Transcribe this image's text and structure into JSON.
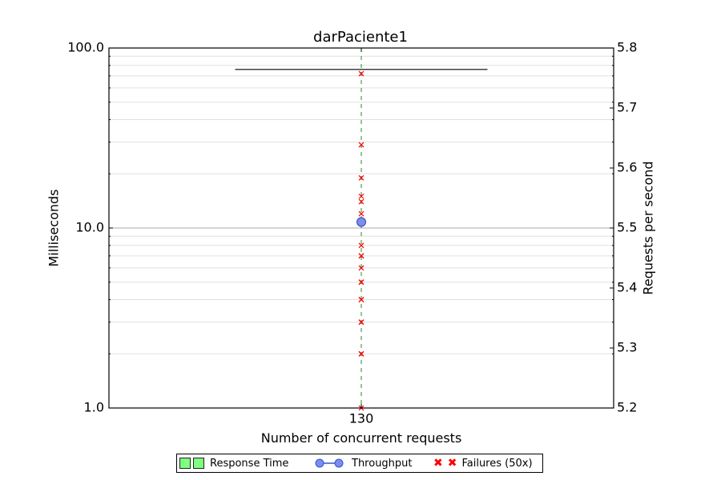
{
  "chart_data": {
    "type": "scatter",
    "title": "darPaciente1",
    "xlabel": "Number of concurrent requests",
    "ylabel_left": "Milliseconds",
    "ylabel_right": "Requests per second",
    "x_categories": [
      "130"
    ],
    "y_left": {
      "scale": "log",
      "lim": [
        1.0,
        100.0
      ],
      "tick_labels": [
        "1.0",
        "10.0",
        "100.0"
      ]
    },
    "y_right": {
      "scale": "linear",
      "lim": [
        5.2,
        5.8
      ],
      "tick_labels": [
        "5.2",
        "5.3",
        "5.4",
        "5.5",
        "5.6",
        "5.7",
        "5.8"
      ]
    },
    "grid": true,
    "series": [
      {
        "name": "Response Time",
        "kind": "box",
        "whisker_max": 76.0,
        "color": "#7fff7f"
      },
      {
        "name": "Throughput",
        "kind": "point",
        "x": "130",
        "y_right": 5.51,
        "color": "#7b8ef0"
      },
      {
        "name": "Failures (50x)",
        "kind": "points",
        "x": "130",
        "y_left": [
          1.0,
          2.0,
          2.0,
          3.0,
          3.0,
          4.0,
          4.0,
          5.0,
          5.0,
          6.0,
          7.0,
          7.0,
          8.0,
          12.0,
          14.0,
          15.0,
          19.0,
          29.0,
          72.0
        ],
        "color": "#ff0000"
      }
    ],
    "legend_position": "bottom-center"
  }
}
